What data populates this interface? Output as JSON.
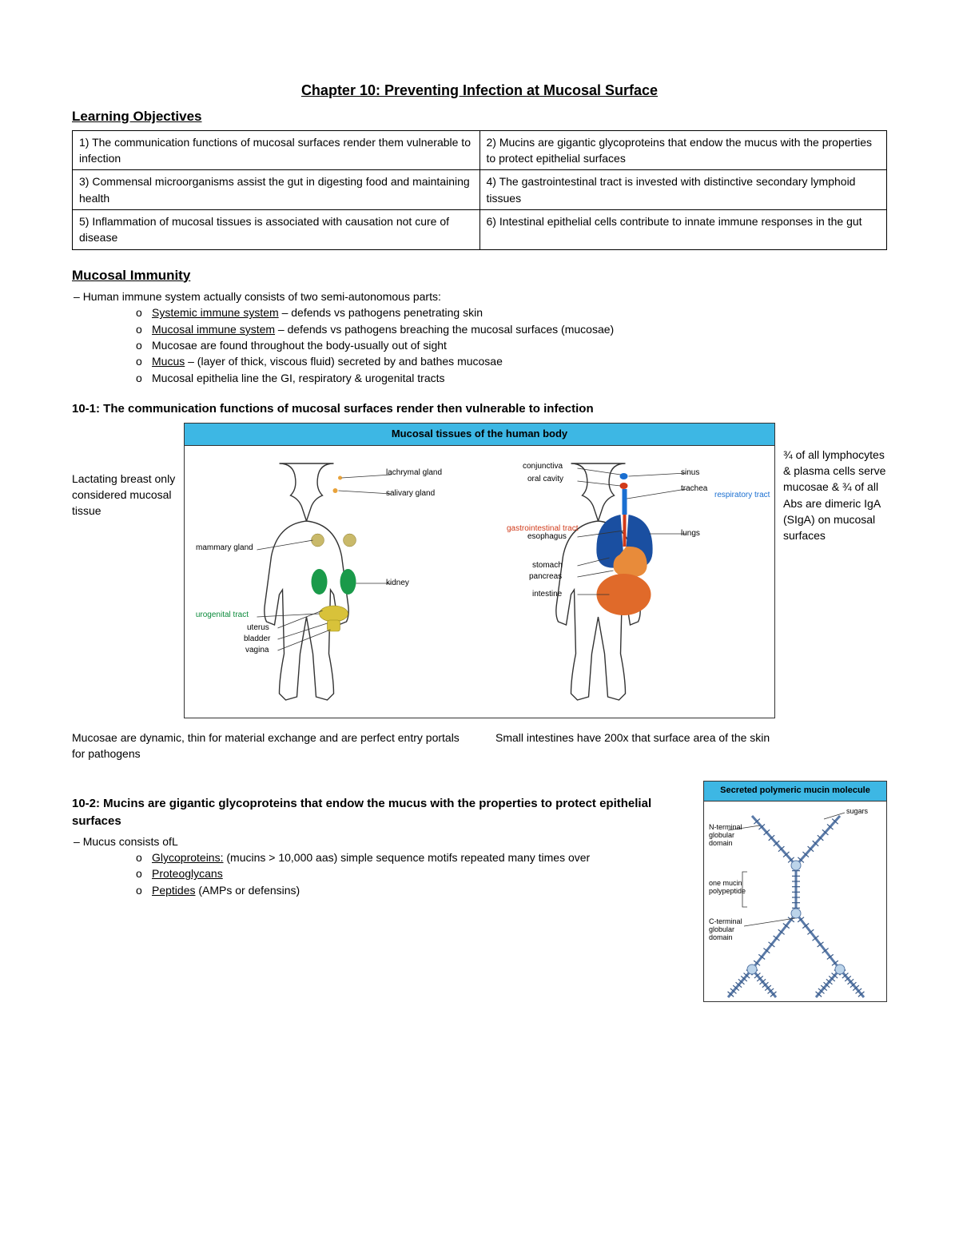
{
  "chapter_title": "Chapter 10: Preventing Infection at Mucosal Surface",
  "learning_objectives_heading": "Learning Objectives",
  "objectives": [
    [
      "1) The communication functions of mucosal surfaces render them vulnerable to infection",
      "2) Mucins are gigantic glycoproteins that endow the mucus with the properties to protect epithelial surfaces"
    ],
    [
      "3) Commensal microorganisms assist the gut in digesting food and maintaining health",
      "4) The gastrointestinal tract is invested with distinctive secondary lymphoid tissues"
    ],
    [
      "5) Inflammation of mucosal tissues is associated with causation not cure of disease",
      "6) Intestinal epithelial cells contribute to innate immune responses in the gut"
    ]
  ],
  "mucosal_heading": "Mucosal Immunity",
  "intro_line": "Human immune system actually consists of two semi-autonomous parts:",
  "intro_items": [
    {
      "u": "Systemic immune system",
      "rest": " – defends vs pathogens penetrating skin"
    },
    {
      "u": "Mucosal immune system",
      "rest": " – defends vs pathogens breaching the mucosal surfaces (mucosae)"
    },
    {
      "plain": "Mucosae are found throughout the body-usually out of sight"
    },
    {
      "u": "Mucus",
      "rest": " – (layer of thick, viscous fluid) secreted by and bathes mucosae"
    },
    {
      "plain": "Mucosal epithelia line the GI, respiratory & urogenital tracts"
    }
  ],
  "sec101_heading": "10-1: The communication functions of mucosal surfaces render then vulnerable to infection",
  "left_note": "Lactating breast only considered mucosal tissue",
  "right_note": "¾ of all lymphocytes & plasma cells serve mucosae & ¾ of all Abs are dimeric IgA (SIgA) on mucosal surfaces",
  "diagram_title": "Mucosal tissues of the human body",
  "figure1_labels_left": {
    "lachrymal": "lachrymal gland",
    "salivary": "salivary gland",
    "mammary": "mammary gland",
    "kidney": "kidney",
    "urogenital": "urogenital tract",
    "uterus": "uterus",
    "bladder": "bladder",
    "vagina": "vagina"
  },
  "figure1_labels_right": {
    "conjunctiva": "conjunctiva",
    "oral": "oral cavity",
    "sinus": "sinus",
    "trachea": "trachea",
    "respiratory": "respiratory tract",
    "lungs": "lungs",
    "gi": "gastrointestinal tract",
    "esophagus": "esophagus",
    "stomach": "stomach",
    "pancreas": "pancreas",
    "intestine": "intestine"
  },
  "caption_left": "Mucosae are dynamic, thin for material exchange and are perfect entry portals for pathogens",
  "caption_right": "Small intestines have 200x that surface area of the skin",
  "sec102_heading": "10-2: Mucins are gigantic glycoproteins that endow the mucus with the properties to protect epithelial surfaces",
  "mucus_intro": "Mucus consists ofL",
  "mucus_items": [
    {
      "u": "Glycoproteins:",
      "rest": " (mucins > 10,000 aas) simple sequence motifs repeated many times over"
    },
    {
      "u": "Proteoglycans",
      "rest": ""
    },
    {
      "u": "Peptides",
      "rest": " (AMPs or defensins)"
    }
  ],
  "mucin_fig_title": "Secreted polymeric mucin molecule",
  "mucin_labels": {
    "sugars": "sugars",
    "nterm": "N-terminal globular domain",
    "onepoly": "one mucin polypeptide",
    "cterm": "C-terminal globular domain"
  },
  "colors": {
    "header_bg": "#3db7e4",
    "green": "#0a8a3a",
    "red": "#d13a1a",
    "blue": "#1a6fd1",
    "orange": "#e88b3a",
    "kidney": "#1a9a4a",
    "uro": "#d8c23a"
  }
}
